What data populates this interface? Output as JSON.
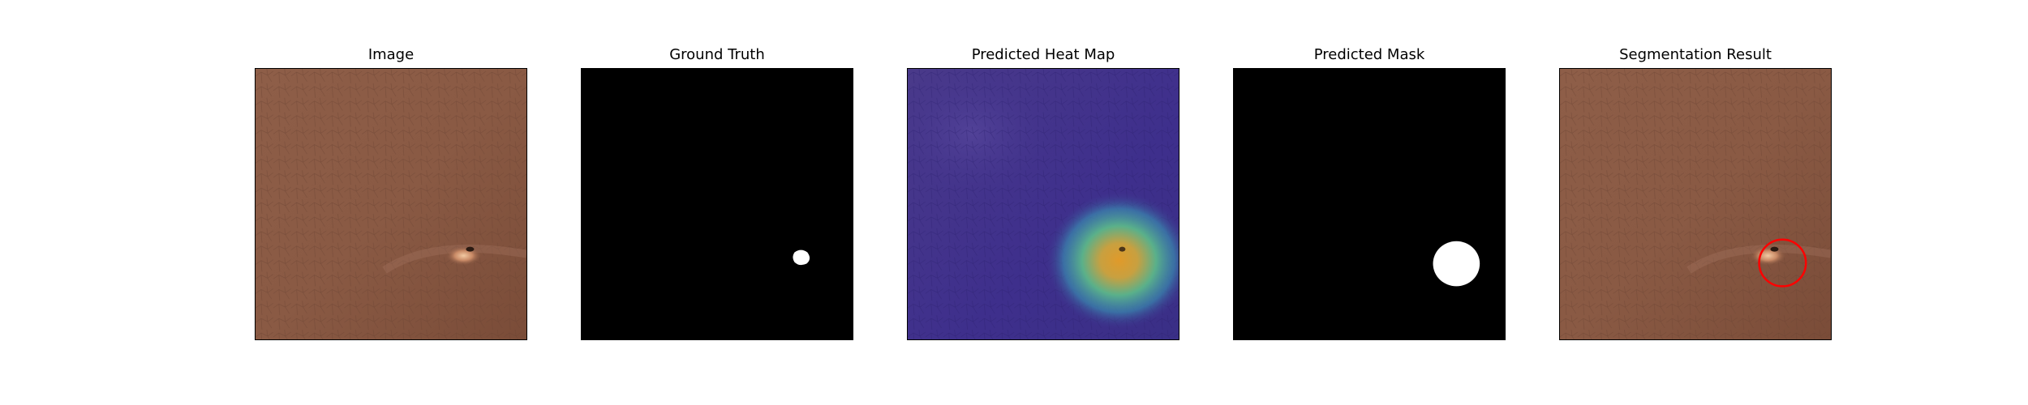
{
  "figure": {
    "panels": [
      {
        "title": "Image"
      },
      {
        "title": "Ground Truth"
      },
      {
        "title": "Predicted Heat Map"
      },
      {
        "title": "Predicted Mask"
      },
      {
        "title": "Segmentation Result"
      }
    ]
  },
  "colors": {
    "leather_base": "#8a5a44",
    "leather_dark": "#6e4634",
    "heatmap_low": "#3f2a8c",
    "heatmap_high": "#e0a030",
    "mask_fg": "#ffffff",
    "mask_bg": "#000000",
    "result_circle": "#ff0000"
  }
}
